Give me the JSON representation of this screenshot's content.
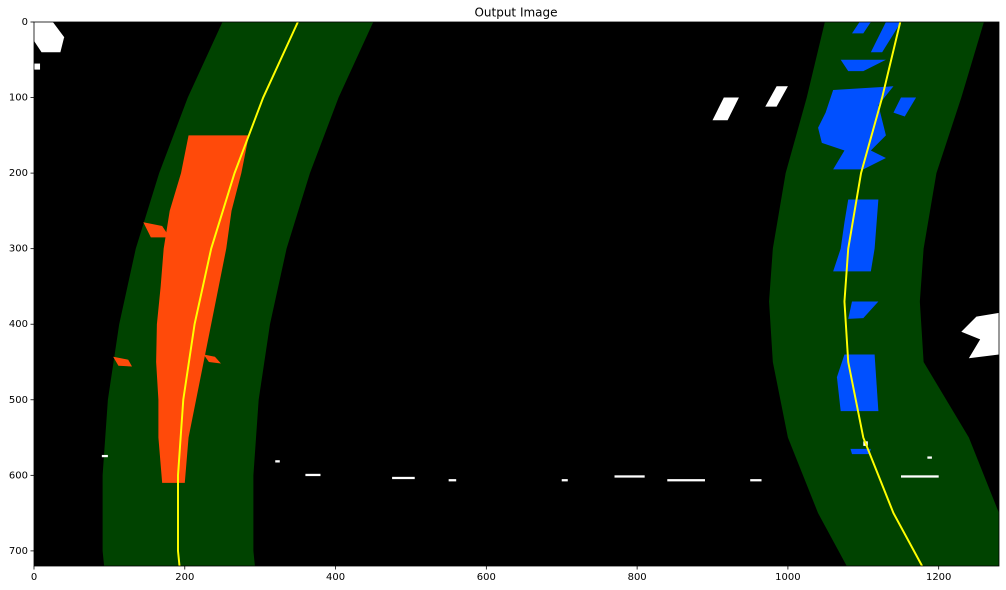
{
  "chart_data": {
    "type": "image",
    "title": "Output Image",
    "xlim": [
      0,
      1280
    ],
    "ylim": [
      720,
      0
    ],
    "xticks": [
      0,
      200,
      400,
      600,
      800,
      1000,
      1200
    ],
    "yticks": [
      0,
      100,
      200,
      300,
      400,
      500,
      600,
      700
    ]
  }
}
